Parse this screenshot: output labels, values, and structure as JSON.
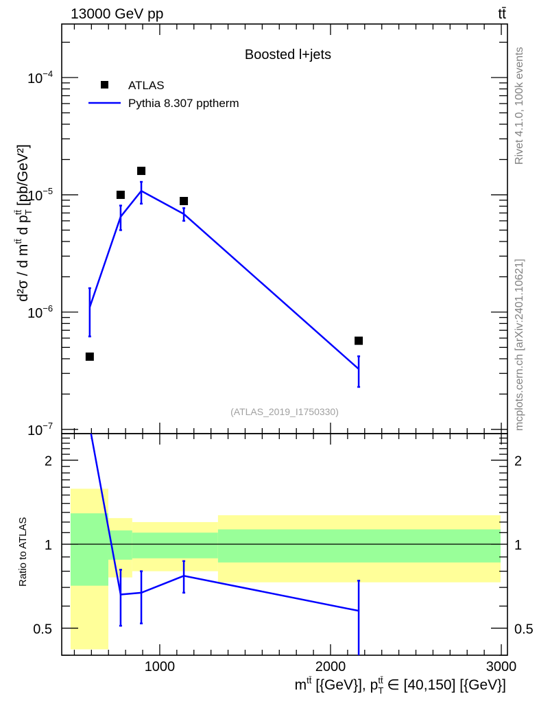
{
  "header": {
    "left": "13000 GeV pp",
    "right": "tt̄"
  },
  "side_text": {
    "rivet": "Rivet 4.1.0,  100k events",
    "mcplots": "mcplots.cern.ch [arXiv:2401.10621]"
  },
  "chart_data": [
    {
      "type": "scatter",
      "title": "Boosted l+jets",
      "annotation": "(ATLAS_2019_I1750330)",
      "ylabel": "d²σ / d m^tt̄ d p_T^tt̄ [pb/GeV²]",
      "yscale": "log",
      "xlim": [
        426,
        3036
      ],
      "ylim": [
        0.000286,
        9.2e-08
      ],
      "ytick_labels": [
        {
          "base": "10",
          "exp": "−4",
          "v": 0.0001
        },
        {
          "base": "10",
          "exp": "−5",
          "v": 1e-05
        },
        {
          "base": "10",
          "exp": "−6",
          "v": 1e-06
        },
        {
          "base": "10",
          "exp": "−7",
          "v": 1e-07
        }
      ],
      "legend": {
        "placement": "top-left",
        "entries": [
          "ATLAS",
          "Pythia 8.307 pptherm"
        ]
      },
      "series": [
        {
          "name": "ATLAS",
          "marker": "square",
          "color": "#000000",
          "x": [
            590,
            771,
            892,
            1141,
            2165
          ],
          "y": [
            4.17e-07,
            1e-05,
            1.6e-05,
            8.85e-06,
            5.7e-07
          ]
        },
        {
          "name": "Pythia 8.307 pptherm",
          "marker": "line",
          "color": "#0000ff",
          "x": [
            590,
            771,
            892,
            1141,
            2165
          ],
          "y": [
            1.1e-06,
            6.5e-06,
            1.08e-05,
            6.86e-06,
            3.27e-07
          ],
          "yerr_up": [
            1.6e-06,
            8.1e-06,
            1.29e-05,
            7.7e-06,
            4.2e-07
          ],
          "yerr_down": [
            6.2e-07,
            5e-06,
            8.4e-06,
            6e-06,
            2.3e-07
          ]
        }
      ]
    },
    {
      "type": "line",
      "ylabel": "Ratio to ATLAS",
      "xlabel": "m^tt̄ [{GeV}], p_T^tt̄ ∈ [40,150] [{GeV}]",
      "xlabel_parts": {
        "m": "m",
        "sup1": "tt̄",
        "mid": " [{GeV}], p",
        "sup2": "tt̄",
        "sub2": "T",
        "end": " ∈ [40,150] [{GeV}]"
      },
      "yscale": "log",
      "xlim": [
        426,
        3036
      ],
      "ylim": [
        2.49,
        0.4
      ],
      "xtick_labels": [
        {
          "label": "1000",
          "v": 1000
        },
        {
          "label": "2000",
          "v": 2000
        },
        {
          "label": "3000",
          "v": 3000
        }
      ],
      "ytick_labels": [
        {
          "label": "2",
          "v": 2
        },
        {
          "label": "1",
          "v": 1
        },
        {
          "label": "0.5",
          "v": 0.5
        }
      ],
      "bands": {
        "bin_edges": [
          478,
          699,
          839,
          1341,
          2996
        ],
        "yellow_up": [
          1.58,
          1.24,
          1.2,
          1.27
        ],
        "yellow_down": [
          0.42,
          0.76,
          0.8,
          0.73
        ],
        "green_up": [
          1.29,
          1.12,
          1.1,
          1.13
        ],
        "green_down": [
          0.71,
          0.88,
          0.89,
          0.86
        ],
        "yellow_color": "#ffff99",
        "green_color": "#99ff99"
      },
      "series": [
        {
          "name": "Pythia 8.307 pptherm / ATLAS",
          "color": "#0000ff",
          "x": [
            590,
            771,
            892,
            1141,
            2165
          ],
          "y": [
            2.64,
            0.66,
            0.67,
            0.77,
            0.577
          ],
          "yerr_up": [
            null,
            0.81,
            0.8,
            0.87,
            0.74
          ],
          "yerr_down": [
            null,
            0.51,
            0.52,
            0.67,
            0.39
          ]
        }
      ]
    }
  ]
}
